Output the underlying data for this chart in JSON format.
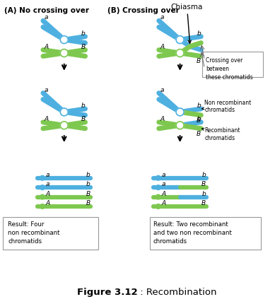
{
  "section_A_title": "(A) No crossing over",
  "section_B_title": "(B) Crossing over",
  "chiasma_label": "Chiasma",
  "crossing_over_box": "Crossing over\nbetween\nthese chromatids",
  "non_recombinant_label": "Non recombinant\nchromatids",
  "recombinant_label": "Recombinant\nchromatids",
  "result_A": "Result: Four\nnon recombinant\nchromatids",
  "result_B": "Result: Two recombinant\nand two non recombinant\nchromatids",
  "title_bold": "Figure 3.12",
  "title_rest": " : Recombination",
  "blue": "#4EB0E0",
  "green": "#7EC850",
  "bg": "#FFFFFF"
}
